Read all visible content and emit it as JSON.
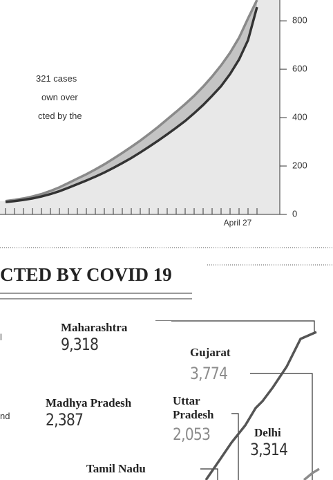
{
  "chart_data": [
    {
      "type": "line",
      "categories": [
        null,
        null,
        null,
        null,
        null,
        null,
        null,
        null,
        null,
        null,
        null,
        null,
        null,
        null,
        null,
        null,
        null,
        null,
        null,
        null,
        null,
        null,
        null,
        null,
        null,
        null,
        null,
        null,
        "April 27"
      ],
      "series": [
        {
          "color": "#8a8a8a",
          "values": [
            55,
            60,
            66,
            74,
            84,
            97,
            112,
            130,
            148,
            166,
            186,
            207,
            230,
            254,
            279,
            305,
            333,
            362,
            393,
            424,
            456,
            490,
            528,
            570,
            616,
            668,
            730,
            810,
            886
          ]
        },
        {
          "color": "#333333",
          "values": [
            51,
            55,
            60,
            66,
            74,
            84,
            96,
            110,
            125,
            140,
            156,
            173,
            192,
            212,
            233,
            256,
            280,
            305,
            331,
            358,
            386,
            418,
            452,
            490,
            530,
            580,
            640,
            720,
            857
          ]
        }
      ],
      "ylim": [
        0,
        886
      ],
      "yticks": [
        0,
        200,
        400,
        600,
        800
      ],
      "annotations": [
        "321 cases",
        "own over",
        "cted by the"
      ]
    },
    {
      "type": "labels",
      "title": "CTED BY COVID 19",
      "fragments": [
        "l",
        "nd"
      ],
      "states": [
        {
          "name": "Maharashtra",
          "value_label": "9,318",
          "color": "#333333"
        },
        {
          "name": "Gujarat",
          "value_label": "3,774",
          "color": "#8c8c8c"
        },
        {
          "name": "Madhya Pradesh",
          "value_label": "2,387",
          "color": "#333333"
        },
        {
          "name": "Uttar Pradesh",
          "value_label": "2,053",
          "color": "#8c8c8c"
        },
        {
          "name": "Delhi",
          "value_label": "3,314",
          "color": "#333333"
        },
        {
          "name": "Tamil Nadu"
        }
      ]
    }
  ]
}
